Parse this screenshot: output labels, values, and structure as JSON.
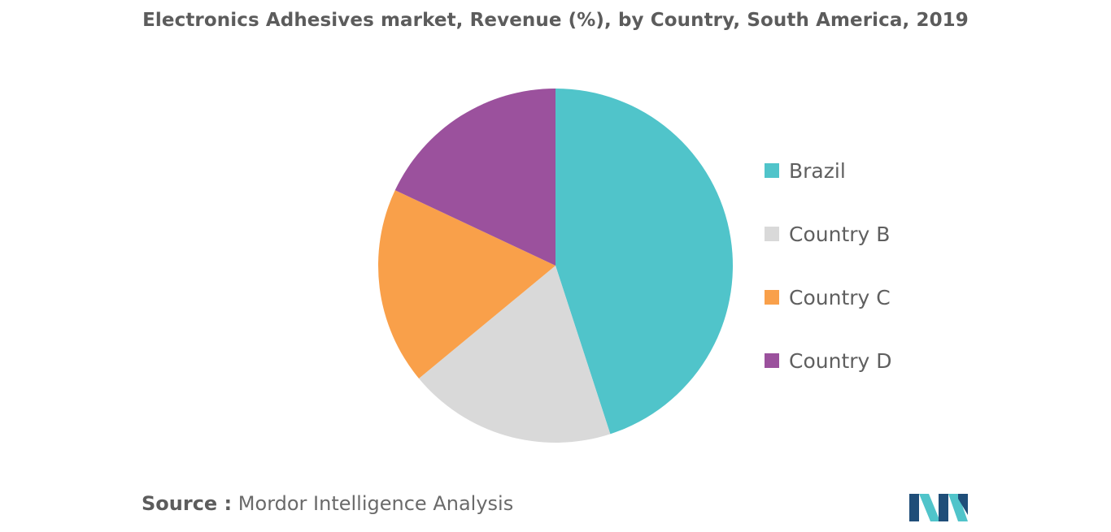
{
  "chart_data": {
    "type": "pie",
    "title": "Electronics Adhesives market, Revenue (%), by Country, South America, 2019",
    "start_angle_deg": 0,
    "direction": "clockwise",
    "legend_position": "right",
    "slices": [
      {
        "label": "Brazil",
        "value": 45,
        "color": "#50c4ca"
      },
      {
        "label": "Country B",
        "value": 19,
        "color": "#d9d9d9"
      },
      {
        "label": "Country C",
        "value": 18,
        "color": "#f9a04a"
      },
      {
        "label": "Country D",
        "value": 18,
        "color": "#9b519d"
      }
    ]
  },
  "footer": {
    "source_label": "Source :",
    "source_text": "Mordor Intelligence Analysis"
  },
  "logo": {
    "icon": "mordor-intelligence-logo-icon",
    "colors": [
      "#1f4e79",
      "#50c4ca"
    ]
  }
}
